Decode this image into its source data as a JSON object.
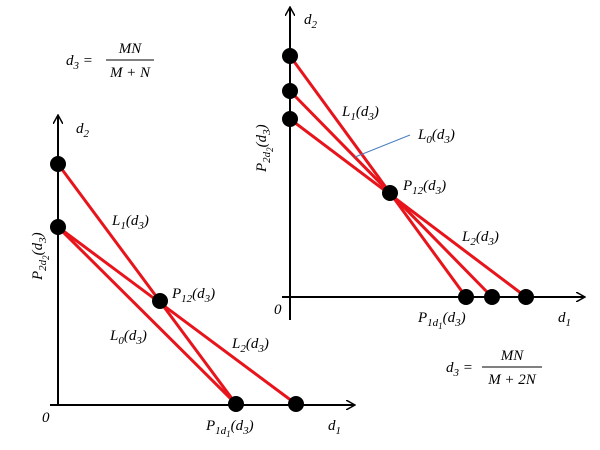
{
  "left": {
    "formula": {
      "lhs": [
        "d",
        {
          "sub": "3"
        },
        " ="
      ],
      "num": "MN",
      "den": "M + N"
    },
    "axis_y": [
      "d",
      {
        "sub": "2"
      }
    ],
    "axis_x": [
      "d",
      {
        "sub": "1"
      }
    ],
    "origin": "0",
    "p2": [
      "P",
      {
        "sub": "2d"
      },
      {
        "sub2": "2"
      },
      "(d",
      {
        "sub": "3"
      },
      ")"
    ],
    "p1": [
      "P",
      {
        "sub": "1d"
      },
      {
        "sub2": "1"
      },
      "(d",
      {
        "sub": "3"
      },
      ")"
    ],
    "p12": [
      "P",
      {
        "sub": "12"
      },
      "(d",
      {
        "sub": "3"
      },
      ")"
    ],
    "l1": [
      "L",
      {
        "sub": "1"
      },
      "(d",
      {
        "sub": "3"
      },
      ")"
    ],
    "l0": [
      "L",
      {
        "sub": "0"
      },
      "(d",
      {
        "sub": "3"
      },
      ")"
    ],
    "l2": [
      "L",
      {
        "sub": "2"
      },
      "(d",
      {
        "sub": "3"
      },
      ")"
    ]
  },
  "right": {
    "formula": {
      "lhs": [
        "d",
        {
          "sub": "3"
        },
        " ="
      ],
      "num": "MN",
      "den": "M + 2N"
    },
    "axis_y": [
      "d",
      {
        "sub": "2"
      }
    ],
    "axis_x": [
      "d",
      {
        "sub": "1"
      }
    ],
    "origin": "0",
    "p2": [
      "P",
      {
        "sub": "2d"
      },
      {
        "sub2": "2"
      },
      "(d",
      {
        "sub": "3"
      },
      ")"
    ],
    "p1": [
      "P",
      {
        "sub": "1d"
      },
      {
        "sub2": "1"
      },
      "(d",
      {
        "sub": "3"
      },
      ")"
    ],
    "p12": [
      "P",
      {
        "sub": "12"
      },
      "(d",
      {
        "sub": "3"
      },
      ")"
    ],
    "l1": [
      "L",
      {
        "sub": "1"
      },
      "(d",
      {
        "sub": "3"
      },
      ")"
    ],
    "l0": [
      "L",
      {
        "sub": "0"
      },
      "(d",
      {
        "sub": "3"
      },
      ")"
    ],
    "l2": [
      "L",
      {
        "sub": "2"
      },
      "(d",
      {
        "sub": "3"
      },
      ")"
    ]
  }
}
